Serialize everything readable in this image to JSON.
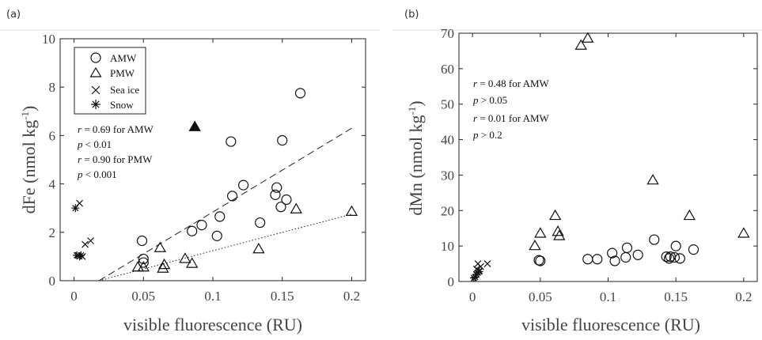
{
  "chart_data": [
    {
      "type": "scatter",
      "panel_label": "(a)",
      "xlabel": "visible fluorescence (RU)",
      "ylabel": "dFe (nmol kg^-1)",
      "xlim": [
        -0.01,
        0.21
      ],
      "ylim": [
        0,
        10
      ],
      "x_ticks": [
        0,
        0.05,
        0.1,
        0.15,
        0.2
      ],
      "x_tick_labels": [
        "0",
        "0.05",
        "0.1",
        "0.15",
        "0.2"
      ],
      "y_ticks": [
        0,
        2,
        4,
        6,
        8,
        10
      ],
      "y_tick_labels": [
        "0",
        "2",
        "4",
        "6",
        "8",
        "10"
      ],
      "legend": {
        "position": "top-left",
        "entries": [
          {
            "label": "AMW",
            "marker": "circle"
          },
          {
            "label": "PMW",
            "marker": "triangle"
          },
          {
            "label": "Sea ice",
            "marker": "x"
          },
          {
            "label": "Snow",
            "marker": "asterisk"
          }
        ]
      },
      "annotations": [
        {
          "prefix": "r",
          "text": " = 0.69 for AMW"
        },
        {
          "prefix": "p",
          "text": " < 0.01"
        },
        {
          "prefix": "r",
          "text": " = 0.90 for PMW"
        },
        {
          "prefix": "p",
          "text": " < 0.001"
        }
      ],
      "fit_lines": [
        {
          "style": "dashed",
          "x": [
            0.018,
            0.2
          ],
          "y": [
            0,
            6.3
          ]
        },
        {
          "style": "dotted",
          "x": [
            0.018,
            0.2
          ],
          "y": [
            0,
            2.75
          ]
        }
      ],
      "series": [
        {
          "name": "AMW",
          "marker": "circle",
          "filled": false,
          "x": [
            0.049,
            0.05,
            0.05,
            0.085,
            0.092,
            0.103,
            0.105,
            0.113,
            0.114,
            0.122,
            0.134,
            0.145,
            0.146,
            0.149,
            0.15,
            0.153,
            0.163
          ],
          "y": [
            1.65,
            0.9,
            0.75,
            2.05,
            2.3,
            1.85,
            2.65,
            5.75,
            3.5,
            3.95,
            2.4,
            3.55,
            3.85,
            3.05,
            5.8,
            3.35,
            7.75
          ]
        },
        {
          "name": "PMW",
          "marker": "triangle",
          "filled": false,
          "x": [
            0.046,
            0.05,
            0.062,
            0.065,
            0.064,
            0.08,
            0.085,
            0.133,
            0.16,
            0.2
          ],
          "y": [
            0.55,
            0.55,
            1.35,
            0.65,
            0.5,
            0.9,
            0.7,
            1.3,
            2.95,
            2.85
          ]
        },
        {
          "name": "PMW",
          "marker": "triangle",
          "filled": true,
          "x": [
            0.087
          ],
          "y": [
            6.35
          ]
        },
        {
          "name": "Sea ice",
          "marker": "x",
          "x": [
            0.003,
            0.004,
            0.006,
            0.008,
            0.012
          ],
          "y": [
            1.05,
            3.2,
            1.0,
            1.5,
            1.65
          ]
        },
        {
          "name": "Snow",
          "marker": "asterisk",
          "x": [
            0.001,
            0.002,
            0.004,
            0.005
          ],
          "y": [
            3.0,
            1.05,
            1.0,
            1.05
          ]
        }
      ]
    },
    {
      "type": "scatter",
      "panel_label": "(b)",
      "xlabel": "visible fluorescence (RU)",
      "ylabel": "dMn (nmol kg^-1)",
      "xlim": [
        -0.01,
        0.21
      ],
      "ylim": [
        0,
        70
      ],
      "x_ticks": [
        0,
        0.05,
        0.1,
        0.15,
        0.2
      ],
      "x_tick_labels": [
        "0",
        "0.05",
        "0.1",
        "0.15",
        "0.2"
      ],
      "y_ticks": [
        0,
        10,
        20,
        30,
        40,
        50,
        60,
        70
      ],
      "y_tick_labels": [
        "0",
        "10",
        "20",
        "30",
        "40",
        "50",
        "60",
        "70"
      ],
      "annotations": [
        {
          "prefix": "r",
          "text": " = 0.48 for AMW"
        },
        {
          "prefix": "p",
          "text": " > 0.05"
        },
        {
          "prefix": "r",
          "text": " = 0.01 for AMW"
        },
        {
          "prefix": "p",
          "text": " > 0.2"
        }
      ],
      "series": [
        {
          "name": "AMW",
          "marker": "circle",
          "filled": false,
          "x": [
            0.049,
            0.05,
            0.085,
            0.092,
            0.103,
            0.105,
            0.113,
            0.114,
            0.122,
            0.134,
            0.143,
            0.145,
            0.146,
            0.149,
            0.15,
            0.153,
            0.163
          ],
          "y": [
            6.0,
            5.8,
            6.3,
            6.3,
            8.0,
            5.8,
            6.8,
            9.5,
            7.5,
            11.8,
            7.0,
            6.5,
            7.0,
            6.8,
            10.0,
            6.5,
            9.0
          ]
        },
        {
          "name": "PMW",
          "marker": "triangle",
          "filled": false,
          "x": [
            0.046,
            0.05,
            0.061,
            0.063,
            0.064,
            0.08,
            0.085,
            0.133,
            0.16,
            0.2
          ],
          "y": [
            10.0,
            13.5,
            18.5,
            14.0,
            12.8,
            66.5,
            68.5,
            28.5,
            18.5,
            13.5
          ]
        },
        {
          "name": "Sea ice",
          "marker": "x",
          "x": [
            0.003,
            0.004,
            0.005,
            0.006,
            0.011
          ],
          "y": [
            3.5,
            5.0,
            3.0,
            4.2,
            5.0
          ]
        },
        {
          "name": "Snow",
          "marker": "asterisk",
          "x": [
            0.001,
            0.002,
            0.003,
            0.004,
            0.005
          ],
          "y": [
            1.0,
            1.2,
            2.0,
            2.5,
            2.8
          ]
        }
      ]
    }
  ]
}
